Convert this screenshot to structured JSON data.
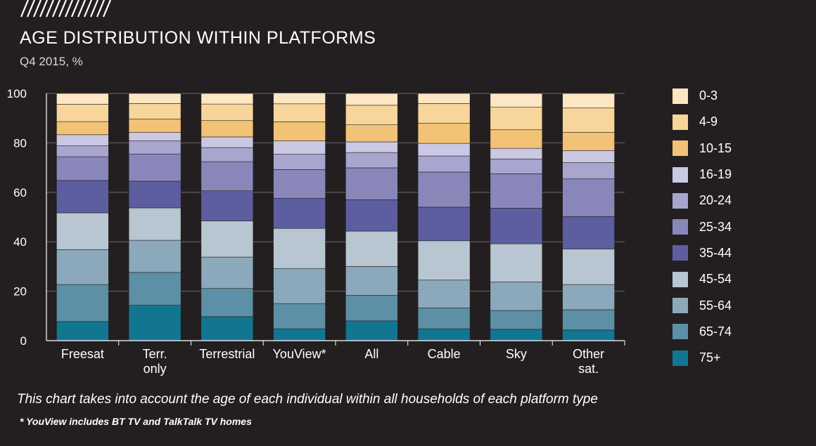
{
  "header": {
    "title": "AGE DISTRIBUTION WITHIN PLATFORMS",
    "subtitle": "Q4 2015, %"
  },
  "note": "This chart takes into account the age of each individual within all households of each platform type",
  "footnote": "* YouView includes BT TV and TalkTalk TV homes",
  "chart_data": {
    "type": "bar",
    "stacked": true,
    "title": "AGE DISTRIBUTION WITHIN PLATFORMS",
    "subtitle": "Q4 2015, %",
    "xlabel": "",
    "ylabel": "",
    "ylim": [
      0,
      100
    ],
    "yticks": [
      0,
      20,
      40,
      60,
      80,
      100
    ],
    "grid": true,
    "legend_position": "right",
    "categories": [
      [
        "Freesat"
      ],
      [
        "Terr.",
        "only"
      ],
      [
        "Terrestrial"
      ],
      [
        "YouView*"
      ],
      [
        "All"
      ],
      [
        "Cable"
      ],
      [
        "Sky"
      ],
      [
        "Other",
        "sat."
      ]
    ],
    "series": [
      {
        "name": "75+",
        "color": "#137691",
        "values": [
          7.7,
          14.3,
          9.7,
          4.8,
          8.0,
          4.8,
          4.6,
          4.3
        ]
      },
      {
        "name": "65-74",
        "color": "#5d8fa6",
        "values": [
          15.0,
          13.3,
          11.4,
          10.2,
          10.3,
          8.4,
          7.6,
          8.2
        ]
      },
      {
        "name": "55-64",
        "color": "#8ba9bb",
        "values": [
          14.1,
          13.0,
          12.7,
          14.2,
          11.7,
          11.3,
          11.5,
          10.2
        ]
      },
      {
        "name": "45-54",
        "color": "#b7c6d0",
        "values": [
          14.9,
          13.1,
          14.6,
          16.2,
          14.3,
          15.9,
          15.5,
          14.4
        ]
      },
      {
        "name": "35-44",
        "color": "#5d5e9f",
        "values": [
          13.1,
          10.8,
          12.2,
          12.2,
          12.7,
          13.6,
          14.4,
          13.1
        ]
      },
      {
        "name": "25-34",
        "color": "#8987ba",
        "values": [
          9.6,
          11.0,
          11.8,
          11.6,
          12.9,
          14.2,
          13.9,
          15.2
        ]
      },
      {
        "name": "20-24",
        "color": "#a8a5cf",
        "values": [
          4.4,
          5.3,
          5.7,
          6.2,
          6.2,
          6.5,
          6.0,
          6.6
        ]
      },
      {
        "name": "16-19",
        "color": "#cac8e2",
        "values": [
          4.5,
          3.4,
          4.3,
          5.4,
          4.3,
          5.1,
          4.3,
          4.9
        ]
      },
      {
        "name": "10-15",
        "color": "#f2c276",
        "values": [
          5.3,
          5.4,
          6.6,
          7.7,
          6.9,
          8.1,
          7.5,
          7.4
        ]
      },
      {
        "name": "4-9",
        "color": "#f7d59b",
        "values": [
          7.0,
          6.3,
          6.7,
          7.3,
          7.9,
          8.0,
          9.1,
          9.8
        ]
      },
      {
        "name": "0-3",
        "color": "#fce6c3",
        "values": [
          4.4,
          4.1,
          4.3,
          4.4,
          4.8,
          4.1,
          5.6,
          5.9
        ]
      }
    ]
  },
  "legend_order": [
    "0-3",
    "4-9",
    "10-15",
    "16-19",
    "20-24",
    "25-34",
    "35-44",
    "45-54",
    "55-64",
    "65-74",
    "75+"
  ]
}
